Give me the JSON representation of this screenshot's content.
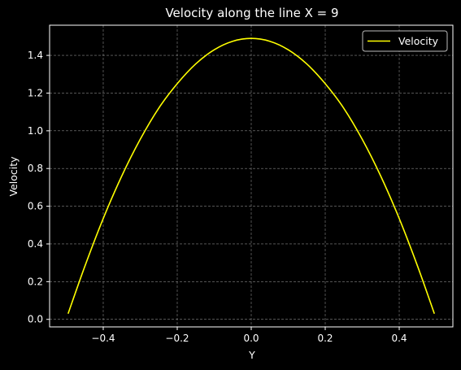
{
  "chart_data": {
    "type": "line",
    "title": "Velocity along the line X = 9",
    "xlabel": "Y",
    "ylabel": "Velocity",
    "xlim": [
      -0.545,
      0.545
    ],
    "ylim": [
      -0.04,
      1.56
    ],
    "x_ticks": [
      -0.4,
      -0.2,
      0.0,
      0.2,
      0.4
    ],
    "x_tick_labels": [
      "−0.4",
      "−0.2",
      "0.0",
      "0.2",
      "0.4"
    ],
    "y_ticks": [
      0.0,
      0.2,
      0.4,
      0.6,
      0.8,
      1.0,
      1.2,
      1.4
    ],
    "y_tick_labels": [
      "0.0",
      "0.2",
      "0.4",
      "0.6",
      "0.8",
      "1.0",
      "1.2",
      "1.4"
    ],
    "grid": true,
    "legend": "upper right",
    "series": [
      {
        "name": "Velocity",
        "color": "#ffff00",
        "x": [
          -0.495,
          -0.45,
          -0.4,
          -0.35,
          -0.3,
          -0.25,
          -0.2,
          -0.15,
          -0.1,
          -0.05,
          0.0,
          0.05,
          0.1,
          0.15,
          0.2,
          0.25,
          0.3,
          0.35,
          0.4,
          0.45,
          0.495
        ],
        "y": [
          0.03,
          0.28,
          0.535,
          0.76,
          0.955,
          1.12,
          1.25,
          1.355,
          1.43,
          1.475,
          1.49,
          1.475,
          1.43,
          1.355,
          1.25,
          1.12,
          0.955,
          0.76,
          0.535,
          0.28,
          0.03
        ]
      }
    ]
  }
}
